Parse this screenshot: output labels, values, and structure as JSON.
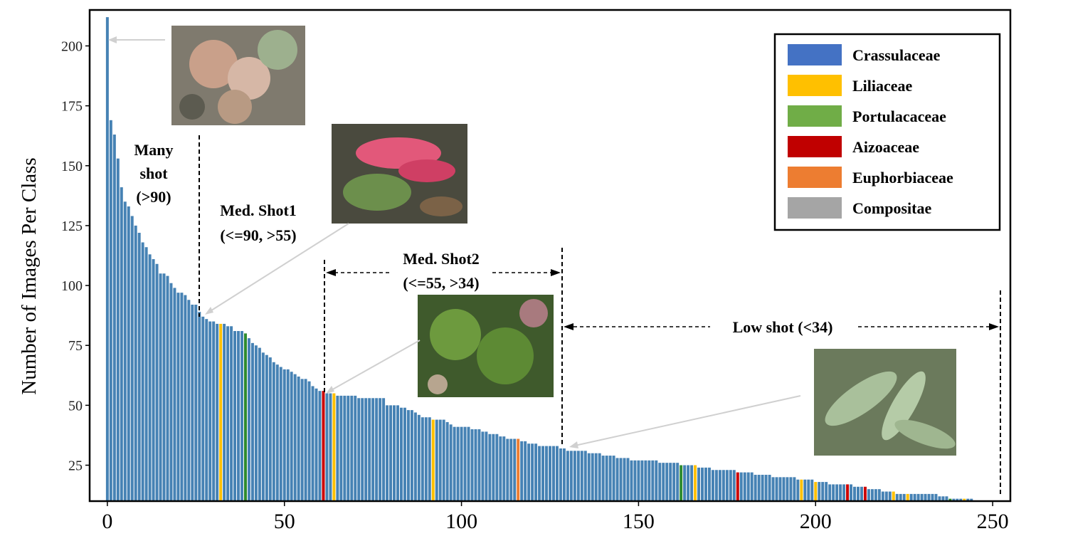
{
  "chart_data": {
    "type": "bar",
    "ylabel": "Number of Images Per Class",
    "xlabel": "",
    "xlim": [
      -5,
      255
    ],
    "ylim": [
      10,
      215
    ],
    "xticks": [
      0,
      50,
      100,
      150,
      200,
      250
    ],
    "yticks": [
      25,
      50,
      75,
      100,
      125,
      150,
      175,
      200
    ],
    "colors": {
      "Crassulaceae": "#4682b4",
      "Liliaceae": "#ffc000",
      "Portulacaceae": "#2e8b2e",
      "Aizoaceae": "#cc0000",
      "Euphorbiaceae": "#ed7d31",
      "Compositae": "#a6a6a6"
    },
    "legend": {
      "position": "top-right",
      "entries": [
        {
          "label": "Crassulaceae",
          "color": "#4472c4"
        },
        {
          "label": "Liliaceae",
          "color": "#ffc000"
        },
        {
          "label": "Portulacaceae",
          "color": "#70ad47"
        },
        {
          "label": "Aizoaceae",
          "color": "#c00000"
        },
        {
          "label": "Euphorbiaceae",
          "color": "#ed7d31"
        },
        {
          "label": "Compositae",
          "color": "#a5a5a5"
        }
      ]
    },
    "annotations": {
      "many_shot": [
        "Many",
        "shot",
        "(>90)"
      ],
      "med_shot1": [
        "Med. Shot1",
        "(<=90, >55)"
      ],
      "med_shot2": [
        "Med. Shot2",
        "(<=55, >34)"
      ],
      "low_shot": [
        "Low shot (<34)"
      ]
    },
    "highlights": [
      {
        "index": 32,
        "family": "Liliaceae"
      },
      {
        "index": 39,
        "family": "Portulacaceae"
      },
      {
        "index": 61,
        "family": "Aizoaceae"
      },
      {
        "index": 64,
        "family": "Liliaceae"
      },
      {
        "index": 92,
        "family": "Liliaceae"
      },
      {
        "index": 116,
        "family": "Euphorbiaceae"
      },
      {
        "index": 162,
        "family": "Portulacaceae"
      },
      {
        "index": 166,
        "family": "Liliaceae"
      },
      {
        "index": 178,
        "family": "Aizoaceae"
      },
      {
        "index": 196,
        "family": "Liliaceae"
      },
      {
        "index": 200,
        "family": "Liliaceae"
      },
      {
        "index": 209,
        "family": "Aizoaceae"
      },
      {
        "index": 214,
        "family": "Aizoaceae"
      },
      {
        "index": 222,
        "family": "Liliaceae"
      },
      {
        "index": 226,
        "family": "Liliaceae"
      },
      {
        "index": 238,
        "family": "Portulacaceae"
      },
      {
        "index": 242,
        "family": "Liliaceae"
      },
      {
        "index": 250,
        "family": "Aizoaceae"
      }
    ],
    "values": [
      212,
      169,
      163,
      153,
      141,
      135,
      133,
      129,
      125,
      122,
      118,
      116,
      113,
      111,
      109,
      105,
      105,
      104,
      101,
      99,
      97,
      97,
      96,
      94,
      92,
      92,
      89,
      87,
      86,
      85,
      85,
      84,
      84,
      84,
      83,
      83,
      81,
      81,
      81,
      80,
      78,
      76,
      75,
      74,
      72,
      71,
      70,
      68,
      67,
      66,
      65,
      65,
      64,
      63,
      62,
      61,
      61,
      60,
      58,
      57,
      56,
      56,
      55,
      55,
      55,
      54,
      54,
      54,
      54,
      54,
      54,
      53,
      53,
      53,
      53,
      53,
      53,
      53,
      53,
      50,
      50,
      50,
      50,
      49,
      49,
      48,
      48,
      47,
      46,
      45,
      45,
      45,
      44,
      44,
      44,
      44,
      43,
      42,
      41,
      41,
      41,
      41,
      41,
      40,
      40,
      40,
      39,
      39,
      38,
      38,
      38,
      37,
      37,
      36,
      36,
      36,
      36,
      35,
      35,
      34,
      34,
      34,
      33,
      33,
      33,
      33,
      33,
      33,
      32,
      32,
      31,
      31,
      31,
      31,
      31,
      31,
      30,
      30,
      30,
      30,
      29,
      29,
      29,
      29,
      28,
      28,
      28,
      28,
      27,
      27,
      27,
      27,
      27,
      27,
      27,
      27,
      26,
      26,
      26,
      26,
      26,
      26,
      25,
      25,
      25,
      25,
      25,
      24,
      24,
      24,
      24,
      23,
      23,
      23,
      23,
      23,
      23,
      23,
      22,
      22,
      22,
      22,
      22,
      21,
      21,
      21,
      21,
      21,
      20,
      20,
      20,
      20,
      20,
      20,
      20,
      19,
      19,
      19,
      19,
      19,
      18,
      18,
      18,
      18,
      17,
      17,
      17,
      17,
      17,
      17,
      17,
      16,
      16,
      16,
      16,
      15,
      15,
      15,
      15,
      14,
      14,
      14,
      14,
      13,
      13,
      13,
      13,
      13,
      13,
      13,
      13,
      13,
      13,
      13,
      13,
      12,
      12,
      12,
      11,
      11,
      11,
      11,
      11,
      11,
      11
    ]
  }
}
